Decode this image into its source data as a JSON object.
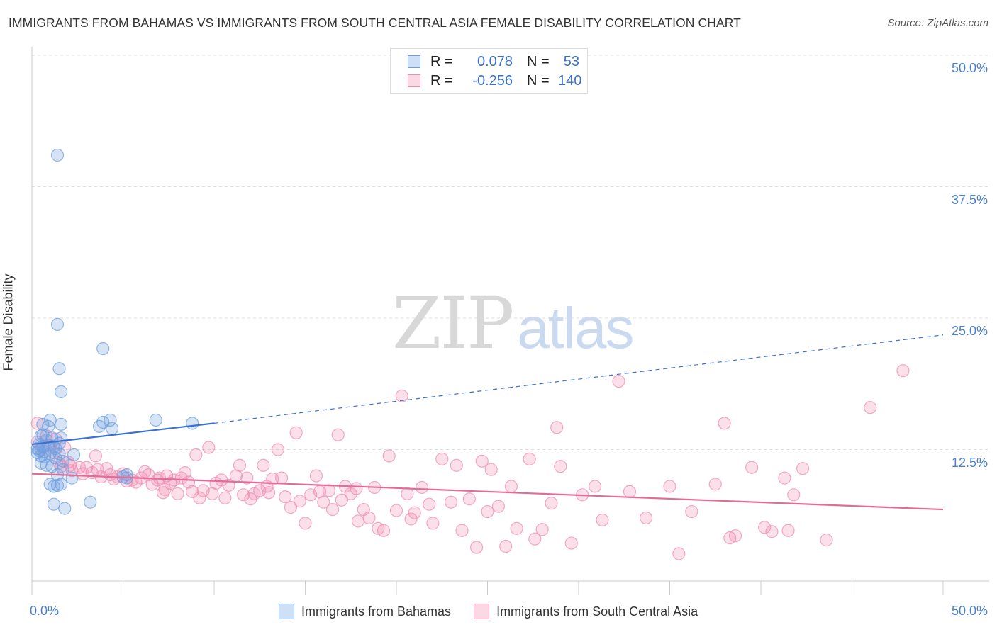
{
  "title": "IMMIGRANTS FROM BAHAMAS VS IMMIGRANTS FROM SOUTH CENTRAL ASIA FEMALE DISABILITY CORRELATION CHART",
  "source": "Source: ZipAtlas.com",
  "watermark": {
    "zip": "ZIP",
    "atlas": "atlas"
  },
  "legend_top": {
    "rows": [
      {
        "r_label": "R =",
        "r_value": "0.078",
        "n_label": "N =",
        "n_value": "53",
        "color": "#6e9fe0"
      },
      {
        "r_label": "R =",
        "r_value": "-0.256",
        "n_label": "N =",
        "n_value": "140",
        "color": "#f08cb0"
      }
    ]
  },
  "legend_bottom": [
    {
      "label": "Immigrants from Bahamas",
      "color": "#6e9fe0"
    },
    {
      "label": "Immigrants from South Central Asia",
      "color": "#f08cb0"
    }
  ],
  "colors": {
    "blue": "#6e9fe0",
    "blue_line": "#3a70d0",
    "pink": "#f08cb0",
    "pink_line": "#e46b97",
    "grid": "#dddddd",
    "axis_label": "#4a7fcf"
  },
  "chart_data": {
    "type": "scatter",
    "title": "IMMIGRANTS FROM BAHAMAS VS IMMIGRANTS FROM SOUTH CENTRAL ASIA FEMALE DISABILITY CORRELATION CHART",
    "xlabel": "",
    "ylabel": "Female Disability",
    "xlim": [
      0,
      50
    ],
    "ylim": [
      0,
      50
    ],
    "x_tick_labels": [
      "0.0%",
      "50.0%"
    ],
    "y_ticks": [
      12.5,
      25.0,
      37.5,
      50.0
    ],
    "y_tick_labels": [
      "12.5%",
      "25.0%",
      "37.5%",
      "50.0%"
    ],
    "grid": true,
    "legend_position": "bottom",
    "series": [
      {
        "name": "Immigrants from Bahamas",
        "r": 0.078,
        "n": 53,
        "trend": {
          "x": [
            0.0,
            10.0
          ],
          "y": [
            13.0,
            15.0
          ],
          "dashed_extension_to": [
            50.0,
            23.4
          ]
        },
        "points": [
          [
            0.3,
            12.6
          ],
          [
            0.3,
            12.2
          ],
          [
            0.4,
            13.0
          ],
          [
            0.4,
            12.4
          ],
          [
            0.5,
            11.9
          ],
          [
            0.5,
            13.8
          ],
          [
            0.6,
            14.9
          ],
          [
            0.6,
            12.8
          ],
          [
            0.7,
            11.8
          ],
          [
            0.7,
            12.3
          ],
          [
            0.8,
            13.4
          ],
          [
            0.8,
            11.0
          ],
          [
            0.9,
            14.7
          ],
          [
            0.9,
            12.9
          ],
          [
            1.0,
            15.3
          ],
          [
            1.0,
            12.1
          ],
          [
            1.1,
            10.9
          ],
          [
            1.1,
            13.6
          ],
          [
            1.2,
            9.0
          ],
          [
            1.2,
            7.3
          ],
          [
            1.3,
            11.7
          ],
          [
            1.3,
            12.6
          ],
          [
            1.4,
            10.1
          ],
          [
            1.4,
            9.1
          ],
          [
            1.5,
            12.1
          ],
          [
            1.5,
            13.1
          ],
          [
            1.6,
            9.2
          ],
          [
            1.6,
            13.6
          ],
          [
            1.7,
            11.4
          ],
          [
            1.7,
            10.6
          ],
          [
            1.4,
            40.5
          ],
          [
            1.4,
            24.4
          ],
          [
            1.5,
            20.2
          ],
          [
            1.6,
            18.0
          ],
          [
            1.6,
            14.9
          ],
          [
            1.8,
            6.9
          ],
          [
            2.2,
            9.8
          ],
          [
            2.3,
            12.0
          ],
          [
            3.2,
            7.5
          ],
          [
            3.7,
            14.7
          ],
          [
            3.9,
            22.1
          ],
          [
            3.9,
            15.1
          ],
          [
            4.3,
            15.3
          ],
          [
            4.4,
            14.5
          ],
          [
            5.0,
            9.9
          ],
          [
            5.2,
            9.8
          ],
          [
            5.2,
            10.1
          ],
          [
            6.8,
            15.3
          ],
          [
            8.8,
            15.0
          ],
          [
            1.0,
            9.2
          ],
          [
            0.5,
            11.2
          ],
          [
            0.6,
            13.9
          ],
          [
            1.2,
            12.8
          ]
        ]
      },
      {
        "name": "Immigrants from South Central Asia",
        "r": -0.256,
        "n": 140,
        "trend": {
          "x": [
            0.0,
            50.0
          ],
          "y": [
            10.2,
            6.8
          ]
        },
        "points": [
          [
            0.3,
            15.0
          ],
          [
            0.3,
            13.2
          ],
          [
            0.5,
            12.5
          ],
          [
            0.8,
            13.8
          ],
          [
            1.0,
            12.9
          ],
          [
            1.2,
            12.2
          ],
          [
            1.3,
            13.5
          ],
          [
            1.5,
            11.2
          ],
          [
            1.6,
            10.9
          ],
          [
            1.8,
            12.7
          ],
          [
            2.0,
            11.3
          ],
          [
            2.1,
            11.0
          ],
          [
            2.2,
            10.5
          ],
          [
            2.6,
            10.8
          ],
          [
            2.8,
            10.2
          ],
          [
            3.0,
            10.8
          ],
          [
            3.3,
            10.3
          ],
          [
            3.5,
            11.9
          ],
          [
            3.6,
            10.6
          ],
          [
            3.8,
            9.9
          ],
          [
            4.1,
            10.7
          ],
          [
            4.3,
            10.1
          ],
          [
            4.5,
            9.7
          ],
          [
            4.7,
            9.9
          ],
          [
            5.0,
            10.2
          ],
          [
            5.2,
            9.5
          ],
          [
            5.5,
            9.6
          ],
          [
            5.7,
            9.4
          ],
          [
            6.0,
            9.8
          ],
          [
            6.2,
            10.4
          ],
          [
            6.4,
            10.1
          ],
          [
            6.6,
            9.2
          ],
          [
            6.9,
            9.6
          ],
          [
            7.0,
            9.8
          ],
          [
            7.2,
            8.4
          ],
          [
            7.4,
            10.0
          ],
          [
            7.6,
            9.3
          ],
          [
            7.8,
            9.6
          ],
          [
            8.0,
            8.3
          ],
          [
            8.2,
            9.8
          ],
          [
            8.4,
            10.3
          ],
          [
            8.6,
            9.4
          ],
          [
            8.8,
            8.5
          ],
          [
            9.0,
            12.0
          ],
          [
            9.2,
            7.9
          ],
          [
            9.4,
            8.6
          ],
          [
            9.7,
            12.7
          ],
          [
            9.9,
            8.3
          ],
          [
            10.1,
            9.3
          ],
          [
            10.4,
            9.6
          ],
          [
            10.6,
            7.9
          ],
          [
            10.8,
            9.1
          ],
          [
            11.2,
            10.0
          ],
          [
            11.4,
            11.0
          ],
          [
            11.6,
            8.2
          ],
          [
            11.8,
            9.8
          ],
          [
            12.0,
            7.8
          ],
          [
            12.2,
            8.3
          ],
          [
            12.5,
            8.6
          ],
          [
            12.7,
            11.0
          ],
          [
            13.0,
            8.4
          ],
          [
            13.2,
            9.7
          ],
          [
            13.5,
            12.5
          ],
          [
            13.7,
            9.8
          ],
          [
            13.9,
            8.0
          ],
          [
            14.2,
            7.0
          ],
          [
            14.5,
            14.1
          ],
          [
            14.7,
            7.6
          ],
          [
            15.0,
            5.5
          ],
          [
            15.3,
            8.2
          ],
          [
            15.6,
            10.0
          ],
          [
            15.8,
            8.5
          ],
          [
            16.0,
            7.5
          ],
          [
            16.3,
            8.6
          ],
          [
            16.5,
            6.8
          ],
          [
            16.8,
            13.9
          ],
          [
            17.0,
            7.7
          ],
          [
            17.2,
            9.0
          ],
          [
            17.5,
            8.3
          ],
          [
            17.9,
            5.7
          ],
          [
            18.2,
            6.8
          ],
          [
            18.5,
            6.0
          ],
          [
            18.8,
            8.9
          ],
          [
            19.0,
            5.0
          ],
          [
            19.3,
            4.8
          ],
          [
            19.6,
            11.9
          ],
          [
            20.0,
            6.7
          ],
          [
            20.3,
            17.6
          ],
          [
            20.6,
            8.3
          ],
          [
            20.8,
            5.9
          ],
          [
            21.0,
            6.5
          ],
          [
            21.4,
            8.9
          ],
          [
            21.8,
            7.3
          ],
          [
            22.0,
            5.5
          ],
          [
            22.5,
            11.6
          ],
          [
            23.0,
            7.5
          ],
          [
            23.3,
            11.0
          ],
          [
            23.6,
            4.8
          ],
          [
            24.0,
            7.8
          ],
          [
            24.4,
            3.2
          ],
          [
            24.7,
            11.4
          ],
          [
            25.0,
            6.6
          ],
          [
            25.2,
            10.6
          ],
          [
            25.6,
            7.1
          ],
          [
            26.0,
            3.3
          ],
          [
            26.3,
            9.0
          ],
          [
            26.6,
            5.0
          ],
          [
            27.3,
            11.6
          ],
          [
            28.0,
            4.9
          ],
          [
            28.5,
            7.4
          ],
          [
            28.8,
            14.6
          ],
          [
            29.0,
            10.9
          ],
          [
            29.6,
            3.6
          ],
          [
            30.2,
            8.2
          ],
          [
            30.9,
            9.0
          ],
          [
            31.3,
            5.8
          ],
          [
            32.2,
            19.0
          ],
          [
            32.8,
            8.5
          ],
          [
            33.7,
            6.0
          ],
          [
            35.0,
            9.0
          ],
          [
            35.5,
            2.6
          ],
          [
            36.2,
            6.6
          ],
          [
            37.5,
            9.2
          ],
          [
            38.0,
            15.0
          ],
          [
            38.3,
            4.1
          ],
          [
            38.6,
            4.3
          ],
          [
            39.5,
            10.8
          ],
          [
            40.2,
            5.1
          ],
          [
            40.6,
            4.7
          ],
          [
            41.3,
            9.8
          ],
          [
            41.5,
            4.8
          ],
          [
            41.8,
            8.2
          ],
          [
            42.3,
            10.7
          ],
          [
            43.6,
            3.9
          ],
          [
            46.0,
            16.5
          ],
          [
            47.8,
            20.0
          ],
          [
            17.8,
            8.8
          ],
          [
            27.6,
            4.0
          ],
          [
            12.9,
            9.0
          ],
          [
            7.3,
            8.7
          ]
        ]
      }
    ]
  }
}
